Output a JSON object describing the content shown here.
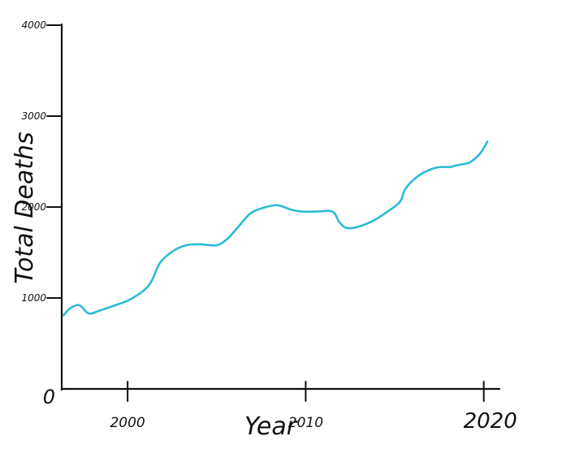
{
  "chart_data": {
    "type": "line",
    "xlabel": "Year",
    "ylabel": "Total Deaths",
    "x_ticks": [
      {
        "label": "2000",
        "value": 2000
      },
      {
        "label": "2010",
        "value": 2010
      },
      {
        "label": "2020",
        "value": 2020
      }
    ],
    "x_tick_label_above": "",
    "y_ticks": [
      {
        "label": "0",
        "value": 0
      },
      {
        "label": "1000",
        "value": 1000
      },
      {
        "label": "2000",
        "value": 2000
      },
      {
        "label": "3000",
        "value": 3000
      },
      {
        "label": "4000",
        "value": 4000
      }
    ],
    "xlim": [
      1996.3,
      2021.2
    ],
    "ylim": [
      0,
      4000
    ],
    "grid": false,
    "series": [
      {
        "color": "#2bbbd4",
        "x": [
          1996.4,
          1996.8,
          1997.3,
          1997.8,
          1998.4,
          1999.3,
          2000.2,
          2001.2,
          2001.8,
          2002.5,
          2003.3,
          2004.1,
          2005.0,
          2005.6,
          2006.2,
          2006.9,
          2007.6,
          2008.4,
          2009.2,
          2009.8,
          2010.6,
          2011.5,
          2011.9,
          2012.3,
          2012.9,
          2013.8,
          2014.6,
          2015.3,
          2015.6,
          2016.3,
          2017.1,
          2017.6,
          2018.1,
          2018.5,
          2019.2,
          2019.8,
          2020.2
        ],
        "y": [
          810,
          890,
          920,
          830,
          860,
          920,
          990,
          1140,
          1380,
          1510,
          1580,
          1590,
          1580,
          1650,
          1780,
          1930,
          1990,
          2020,
          1970,
          1950,
          1950,
          1950,
          1830,
          1770,
          1780,
          1850,
          1950,
          2060,
          2200,
          2340,
          2420,
          2440,
          2440,
          2460,
          2490,
          2590,
          2720
        ]
      }
    ]
  }
}
